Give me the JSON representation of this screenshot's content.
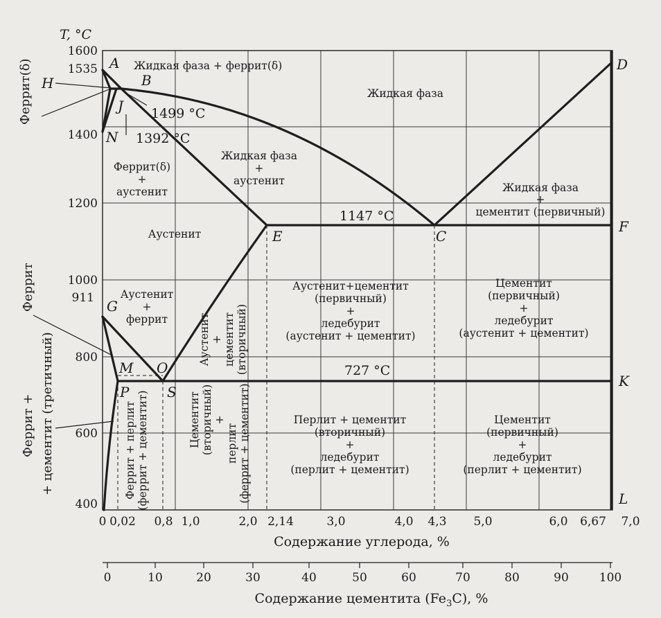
{
  "chart_data": {
    "type": "diagram",
    "title": "",
    "y_axis": {
      "label": "T, °C",
      "ticks": [
        "1600",
        "1535",
        "1400",
        "1200",
        "1000",
        "911",
        "800",
        "600",
        "400"
      ],
      "range": [
        400,
        1600
      ]
    },
    "x_axis_carbon": {
      "label": "Содержание углерода, %",
      "ticks": [
        "0",
        "0,02",
        "0,8",
        "1,0",
        "2,0",
        "2,14",
        "3,0",
        "4,0",
        "4,3",
        "5,0",
        "6,0",
        "6,67",
        "7,0"
      ],
      "range": [
        0,
        7
      ]
    },
    "x_axis_cementite": {
      "label": "Содержание цементита (Fe3C), %",
      "label_main": "Содержание цементита (Fe",
      "label_sub": "3",
      "label_end": "C),  %",
      "ticks": [
        "0",
        "10",
        "20",
        "30",
        "40",
        "50",
        "60",
        "70",
        "80",
        "90",
        "100"
      ]
    },
    "points": {
      "A": "A",
      "B": "B",
      "C": "C",
      "D": "D",
      "E": "E",
      "F": "F",
      "G": "G",
      "H": "H",
      "J": "J",
      "K": "K",
      "L": "L",
      "M": "M",
      "N": "N",
      "O": "O",
      "P": "P",
      "S": "S"
    },
    "temperatures": {
      "t1499": "1499 °C",
      "t1392": "1392 °C",
      "t1147": "1147 °C",
      "t727": "727 °C"
    },
    "regions": {
      "liquid_ferrite": "Жидкая фаза + феррит(δ)",
      "liquid": "Жидкая фаза",
      "ferrite_austenite": [
        "Феррит(δ)",
        "+",
        "аустенит"
      ],
      "liquid_austenite": [
        "Жидкая фаза",
        "+",
        "аустенит"
      ],
      "liquid_cementite": [
        "Жидкая фаза",
        "+",
        "цементит (первичный)"
      ],
      "austenite": "Аустенит",
      "austenite_ferrite": [
        "Аустенит",
        "+",
        "феррит"
      ],
      "austenite_cementite_sec": [
        "Аустенит",
        "+",
        "цементит",
        "(вторичный)"
      ],
      "aus_cem_ledeburite": [
        "Аустенит+цементит",
        "(первичный)",
        "+",
        "ледебурит",
        "(аустенит + цементит)"
      ],
      "cem_ledeburite_high": [
        "Цементит",
        "(первичный)",
        "+",
        "ледебурит",
        "(аустенит + цементит)"
      ],
      "ferrite_pearlite": [
        "Феррит + перлит",
        "(феррит + цементит)"
      ],
      "cementite_pearlite": [
        "Цементит",
        "(вторичный)",
        "+",
        "перлит",
        "(феррит + цементит)"
      ],
      "pearlite_cem_ledeburite": [
        "Перлит + цементит",
        "(вторичный)",
        "+",
        "ледебурит",
        "(перлит + цементит)"
      ],
      "cem_ledeburite_low": [
        "Цементит",
        "(первичный)",
        "+",
        "ледебурит",
        "(перлит + цементит)"
      ]
    },
    "side_labels": {
      "ferrite_delta": "Феррит(δ)",
      "ferrite": "Феррит",
      "ferrite_cementite_1": "Феррит +",
      "ferrite_cementite_2": "+ цементит (третичный)"
    },
    "boundaries": {
      "liquidus": [
        [
          0,
          1535
        ],
        [
          0.51,
          1499
        ],
        [
          4.3,
          1147
        ],
        [
          6.67,
          1550
        ]
      ],
      "solidus": [
        [
          0,
          1535
        ],
        [
          0.1,
          1499
        ],
        [
          0.16,
          1499
        ],
        [
          2.14,
          1147
        ]
      ],
      "eutectic": [
        [
          2.14,
          1147
        ],
        [
          6.67,
          1147
        ]
      ],
      "eutectoid": [
        [
          0.02,
          727
        ],
        [
          6.67,
          727
        ]
      ],
      "A3": [
        [
          0,
          911
        ],
        [
          0.8,
          727
        ]
      ],
      "Acm": [
        [
          0.8,
          727
        ],
        [
          2.14,
          1147
        ]
      ]
    }
  }
}
